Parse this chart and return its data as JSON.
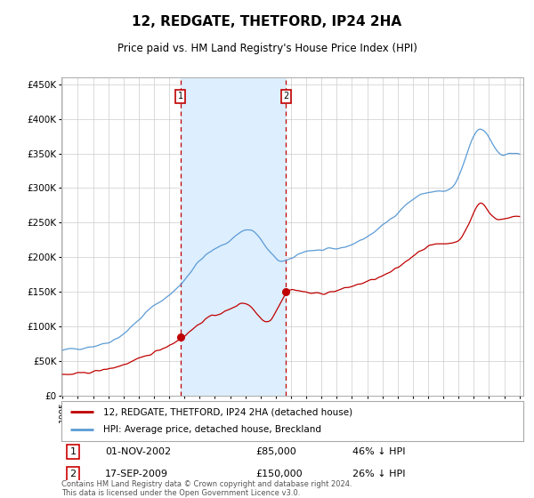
{
  "title": "12, REDGATE, THETFORD, IP24 2HA",
  "subtitle": "Price paid vs. HM Land Registry's House Price Index (HPI)",
  "ylim": [
    0,
    460000
  ],
  "yticks": [
    0,
    50000,
    100000,
    150000,
    200000,
    250000,
    300000,
    350000,
    400000,
    450000
  ],
  "ytick_labels": [
    "£0",
    "£50K",
    "£100K",
    "£150K",
    "£200K",
    "£250K",
    "£300K",
    "£350K",
    "£400K",
    "£450K"
  ],
  "sale1_price": 85000,
  "sale2_price": 150000,
  "hpi_color": "#5b9bd5",
  "price_color": "#c00000",
  "shade_color": "#ddeeff",
  "grid_color": "#cccccc",
  "background_color": "#ffffff",
  "legend_house_label": "12, REDGATE, THETFORD, IP24 2HA (detached house)",
  "legend_hpi_label": "HPI: Average price, detached house, Breckland",
  "table_row1": [
    "1",
    "01-NOV-2002",
    "£85,000",
    "46% ↓ HPI"
  ],
  "table_row2": [
    "2",
    "17-SEP-2009",
    "£150,000",
    "26% ↓ HPI"
  ],
  "footer": "Contains HM Land Registry data © Crown copyright and database right 2024.\nThis data is licensed under the Open Government Licence v3.0."
}
